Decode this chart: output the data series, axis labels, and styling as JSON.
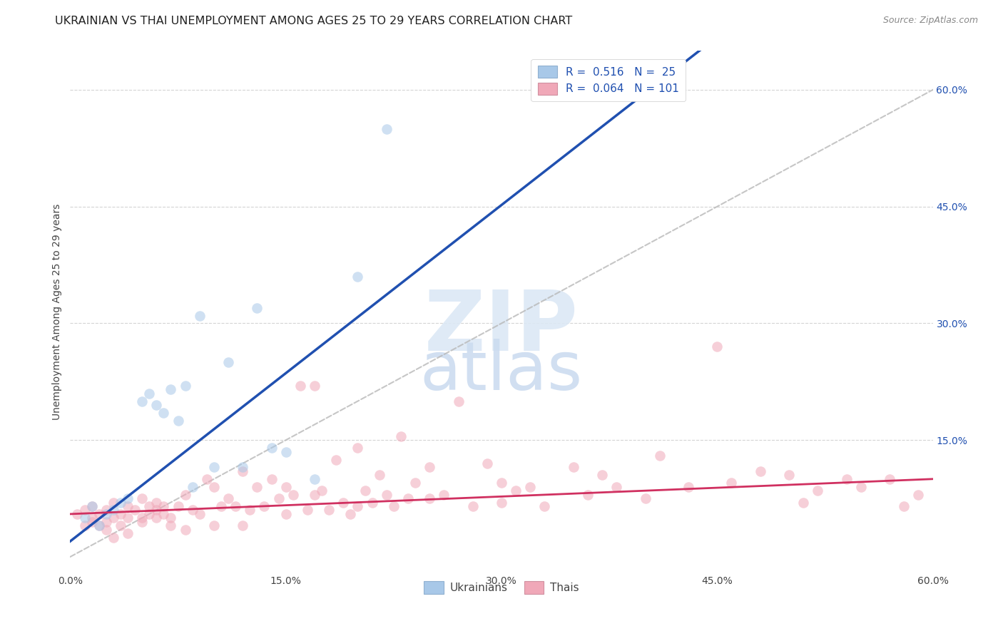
{
  "title": "UKRAINIAN VS THAI UNEMPLOYMENT AMONG AGES 25 TO 29 YEARS CORRELATION CHART",
  "source": "Source: ZipAtlas.com",
  "ylabel": "Unemployment Among Ages 25 to 29 years",
  "xlim": [
    0.0,
    0.6
  ],
  "ylim": [
    -0.02,
    0.65
  ],
  "x_ticks": [
    0.0,
    0.15,
    0.3,
    0.45,
    0.6
  ],
  "x_tick_labels": [
    "0.0%",
    "15.0%",
    "30.0%",
    "45.0%",
    "60.0%"
  ],
  "y_ticks": [
    0.15,
    0.3,
    0.45,
    0.6
  ],
  "y_tick_labels": [
    "15.0%",
    "30.0%",
    "45.0%",
    "60.0%"
  ],
  "diagonal_line_color": "#b8b8b8",
  "background_color": "#ffffff",
  "grid_color": "#d0d0d0",
  "ukr_color": "#a8c8e8",
  "thai_color": "#f0a8b8",
  "ukr_line_color": "#2050b0",
  "thai_line_color": "#d03060",
  "ukr_R": "0.516",
  "ukr_N": "25",
  "thai_R": "0.064",
  "thai_N": "101",
  "legend_color": "#2050b0",
  "ukr_x": [
    0.01,
    0.015,
    0.02,
    0.025,
    0.03,
    0.035,
    0.04,
    0.05,
    0.055,
    0.06,
    0.065,
    0.07,
    0.075,
    0.08,
    0.085,
    0.09,
    0.1,
    0.11,
    0.12,
    0.13,
    0.14,
    0.15,
    0.17,
    0.2,
    0.22
  ],
  "ukr_y": [
    0.05,
    0.065,
    0.04,
    0.055,
    0.06,
    0.07,
    0.075,
    0.2,
    0.21,
    0.195,
    0.185,
    0.215,
    0.175,
    0.22,
    0.09,
    0.31,
    0.115,
    0.25,
    0.115,
    0.32,
    0.14,
    0.135,
    0.1,
    0.36,
    0.55
  ],
  "thai_x": [
    0.005,
    0.01,
    0.01,
    0.015,
    0.015,
    0.02,
    0.02,
    0.025,
    0.025,
    0.03,
    0.03,
    0.035,
    0.035,
    0.04,
    0.04,
    0.045,
    0.05,
    0.05,
    0.055,
    0.055,
    0.06,
    0.06,
    0.065,
    0.065,
    0.07,
    0.075,
    0.08,
    0.085,
    0.09,
    0.095,
    0.1,
    0.105,
    0.11,
    0.115,
    0.12,
    0.125,
    0.13,
    0.135,
    0.14,
    0.145,
    0.15,
    0.155,
    0.16,
    0.165,
    0.17,
    0.175,
    0.18,
    0.185,
    0.19,
    0.195,
    0.2,
    0.205,
    0.21,
    0.215,
    0.22,
    0.225,
    0.23,
    0.235,
    0.24,
    0.25,
    0.26,
    0.27,
    0.28,
    0.29,
    0.3,
    0.31,
    0.32,
    0.33,
    0.35,
    0.36,
    0.37,
    0.38,
    0.4,
    0.41,
    0.43,
    0.45,
    0.46,
    0.48,
    0.5,
    0.51,
    0.52,
    0.54,
    0.55,
    0.57,
    0.58,
    0.59,
    0.015,
    0.025,
    0.03,
    0.04,
    0.05,
    0.06,
    0.07,
    0.08,
    0.1,
    0.12,
    0.15,
    0.17,
    0.2,
    0.25,
    0.3
  ],
  "thai_y": [
    0.055,
    0.06,
    0.04,
    0.05,
    0.065,
    0.055,
    0.04,
    0.06,
    0.045,
    0.07,
    0.05,
    0.055,
    0.04,
    0.065,
    0.05,
    0.06,
    0.075,
    0.05,
    0.065,
    0.055,
    0.07,
    0.06,
    0.065,
    0.055,
    0.05,
    0.065,
    0.08,
    0.06,
    0.055,
    0.1,
    0.09,
    0.065,
    0.075,
    0.065,
    0.11,
    0.06,
    0.09,
    0.065,
    0.1,
    0.075,
    0.09,
    0.08,
    0.22,
    0.06,
    0.22,
    0.085,
    0.06,
    0.125,
    0.07,
    0.055,
    0.14,
    0.085,
    0.07,
    0.105,
    0.08,
    0.065,
    0.155,
    0.075,
    0.095,
    0.115,
    0.08,
    0.2,
    0.065,
    0.12,
    0.095,
    0.085,
    0.09,
    0.065,
    0.115,
    0.08,
    0.105,
    0.09,
    0.075,
    0.13,
    0.09,
    0.27,
    0.095,
    0.11,
    0.105,
    0.07,
    0.085,
    0.1,
    0.09,
    0.1,
    0.065,
    0.08,
    0.045,
    0.035,
    0.025,
    0.03,
    0.045,
    0.05,
    0.04,
    0.035,
    0.04,
    0.04,
    0.055,
    0.08,
    0.065,
    0.075,
    0.07
  ],
  "marker_size": 110,
  "marker_alpha": 0.55,
  "title_fontsize": 11.5,
  "axis_label_fontsize": 10,
  "tick_fontsize": 10,
  "legend_fontsize": 11,
  "source_fontsize": 9
}
